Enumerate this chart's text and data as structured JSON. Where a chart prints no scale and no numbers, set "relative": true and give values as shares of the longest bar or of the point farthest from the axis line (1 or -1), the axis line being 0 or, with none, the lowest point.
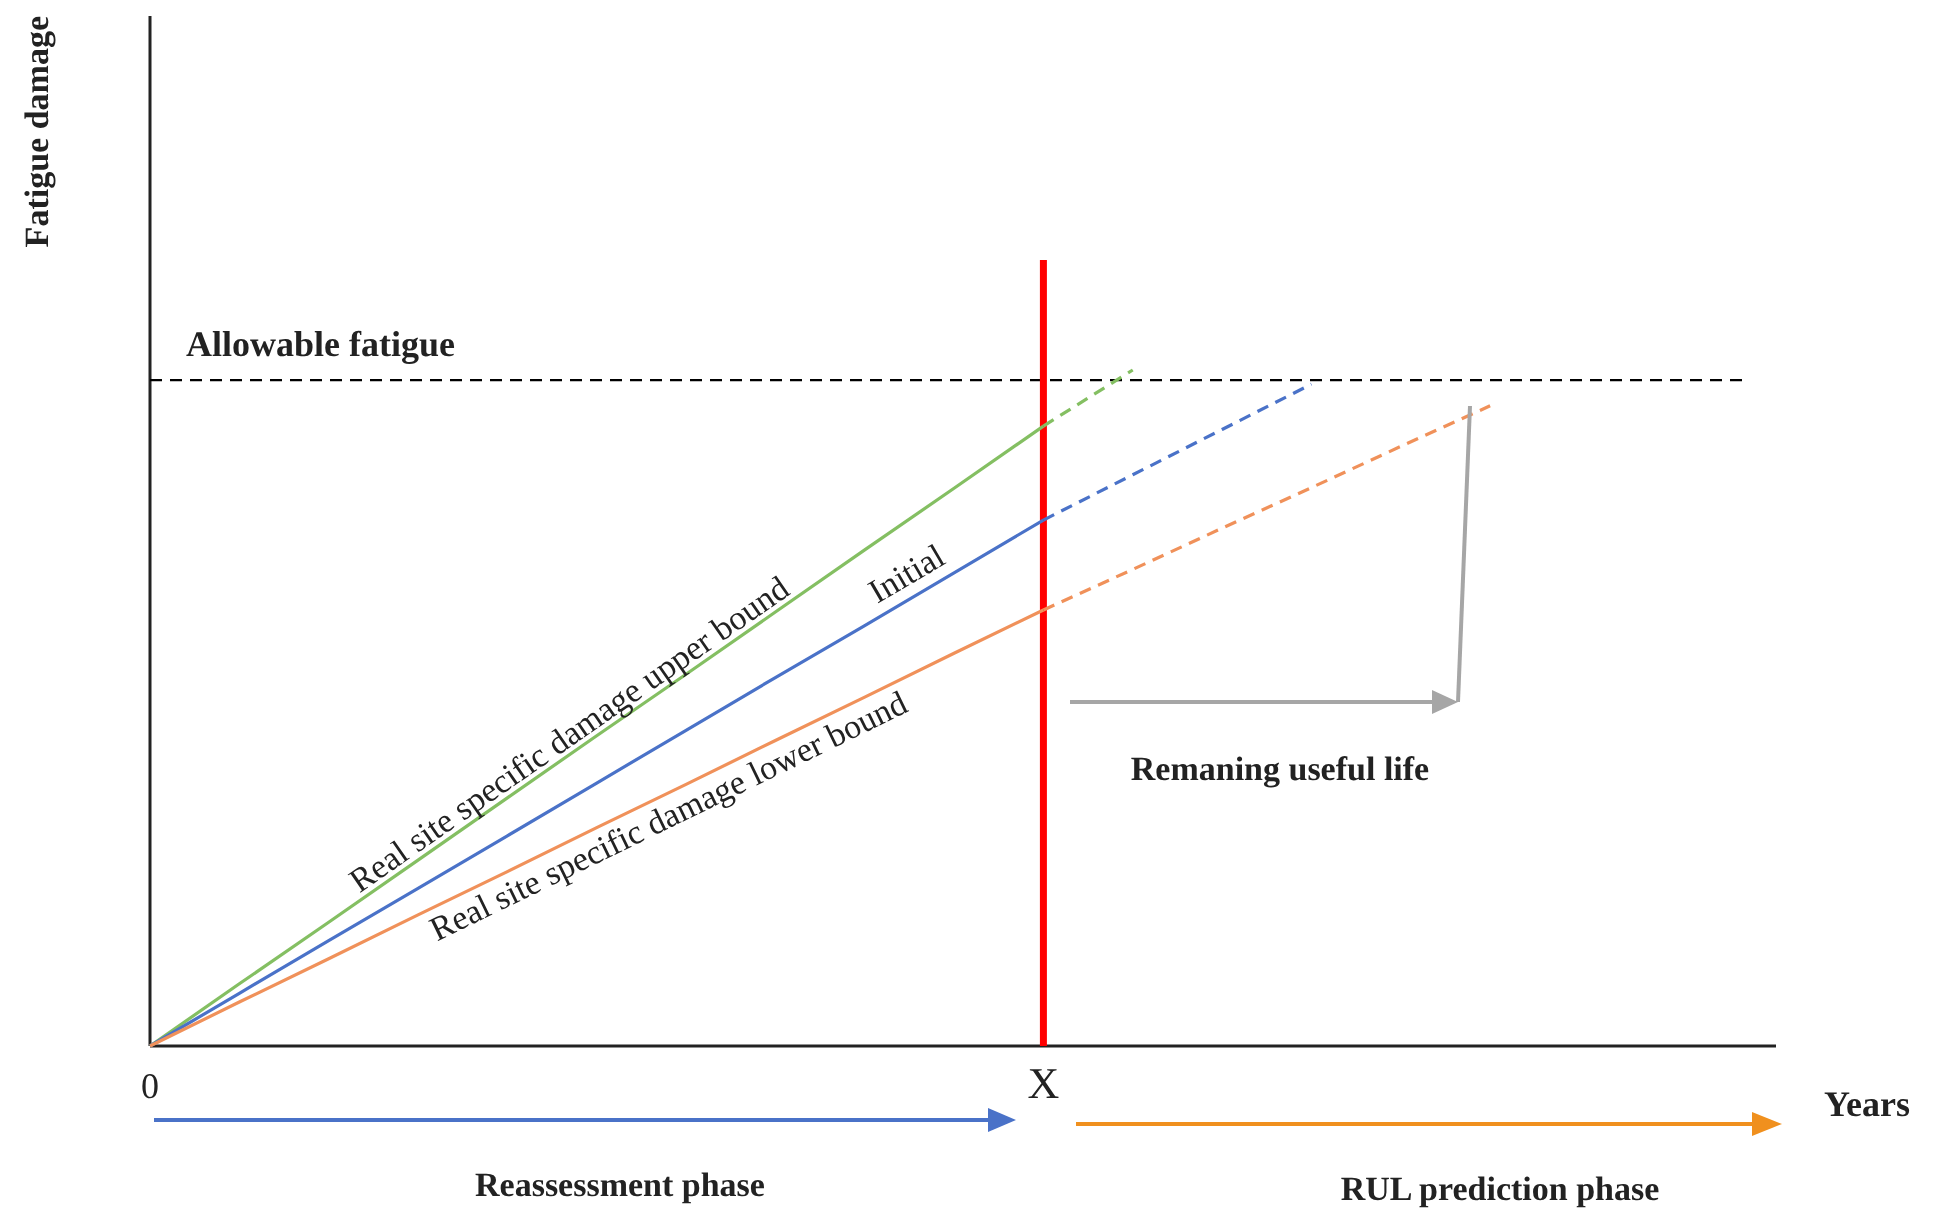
{
  "chart_data": {
    "type": "line",
    "relative": true,
    "xlabel": "Years",
    "ylabel": "Fatigue damage",
    "marker": "none",
    "categories": [
      "0",
      null,
      null,
      null,
      null,
      null,
      null,
      null,
      null,
      null,
      "X",
      null,
      null,
      null,
      null,
      null,
      null,
      null,
      null
    ],
    "series": [
      {
        "name": "Real site specific damage upper bound",
        "color": "#84bf62",
        "line_style": "solid",
        "values": [
          0,
          0.092,
          0.183,
          0.275,
          0.367,
          0.459,
          0.55,
          0.642,
          0.734,
          0.825,
          0.917,
          null,
          null,
          null,
          null,
          null,
          null,
          null,
          null
        ]
      },
      {
        "name": "Initial",
        "color": "#4a72c8",
        "line_style": "solid",
        "values": [
          0,
          0.078,
          0.156,
          0.233,
          0.311,
          0.389,
          0.467,
          0.545,
          0.622,
          0.7,
          0.778,
          null,
          null,
          null,
          null,
          null,
          null,
          null,
          null
        ]
      },
      {
        "name": "Real site specific damage lower bound",
        "color": "#f0915a",
        "line_style": "solid",
        "values": [
          0,
          0.065,
          0.129,
          0.194,
          0.258,
          0.323,
          0.387,
          0.452,
          0.516,
          0.581,
          0.645,
          null,
          null,
          null,
          null,
          null,
          null,
          null,
          null
        ]
      },
      {
        "color": "#84bf62",
        "line_style": "dashed",
        "values": [
          null,
          null,
          null,
          null,
          null,
          null,
          null,
          null,
          null,
          null,
          0.917,
          1,
          null,
          null,
          null,
          null,
          null,
          null,
          null
        ]
      },
      {
        "color": "#4a72c8",
        "line_style": "dashed",
        "values": [
          null,
          null,
          null,
          null,
          null,
          null,
          null,
          null,
          null,
          null,
          0.778,
          0.845,
          0.912,
          0.979,
          null,
          null,
          null,
          null,
          null
        ]
      },
      {
        "color": "#f0915a",
        "line_style": "dashed",
        "values": [
          null,
          null,
          null,
          null,
          null,
          null,
          null,
          null,
          null,
          null,
          0.645,
          0.705,
          0.766,
          0.826,
          0.887,
          0.947,
          null,
          null,
          null
        ]
      }
    ],
    "ref_lines": [
      {
        "axis": "y",
        "value": 0.985,
        "label": "Allowable fatigue",
        "color": "#000000",
        "line_style": "dashed"
      },
      {
        "axis": "x",
        "value": "X",
        "label": null,
        "color": "#ff0000",
        "line_style": "solid"
      }
    ],
    "annotations": [
      "Remaning useful life",
      "Reassessment phase",
      "RUL prediction phase"
    ]
  }
}
